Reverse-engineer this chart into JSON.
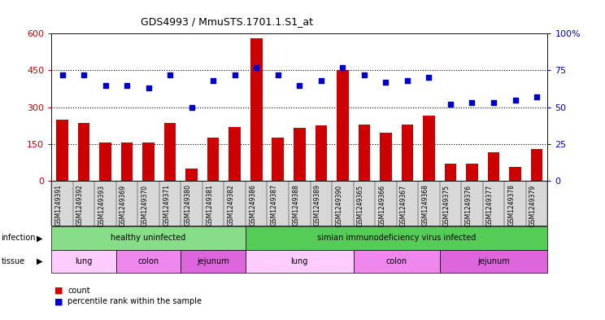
{
  "title": "GDS4993 / MmuSTS.1701.1.S1_at",
  "samples": [
    "GSM1249391",
    "GSM1249392",
    "GSM1249393",
    "GSM1249369",
    "GSM1249370",
    "GSM1249371",
    "GSM1249380",
    "GSM1249381",
    "GSM1249382",
    "GSM1249386",
    "GSM1249387",
    "GSM1249388",
    "GSM1249389",
    "GSM1249390",
    "GSM1249365",
    "GSM1249366",
    "GSM1249367",
    "GSM1249368",
    "GSM1249375",
    "GSM1249376",
    "GSM1249377",
    "GSM1249378",
    "GSM1249379"
  ],
  "counts": [
    250,
    235,
    155,
    155,
    155,
    235,
    50,
    175,
    220,
    580,
    175,
    215,
    225,
    450,
    230,
    195,
    230,
    265,
    70,
    70,
    115,
    55,
    130
  ],
  "percentiles": [
    72,
    72,
    65,
    65,
    63,
    72,
    50,
    68,
    72,
    77,
    72,
    65,
    68,
    77,
    72,
    67,
    68,
    70,
    52,
    53,
    53,
    55,
    57
  ],
  "bar_color": "#cc0000",
  "scatter_color": "#0000cc",
  "infection_groups": [
    {
      "label": "healthy uninfected",
      "start": 0,
      "end": 9,
      "color": "#88dd88"
    },
    {
      "label": "simian immunodeficiency virus infected",
      "start": 9,
      "end": 23,
      "color": "#55cc55"
    }
  ],
  "tissue_groups": [
    {
      "label": "lung",
      "start": 0,
      "end": 3,
      "color": "#ffccff"
    },
    {
      "label": "colon",
      "start": 3,
      "end": 6,
      "color": "#ee88ee"
    },
    {
      "label": "jejunum",
      "start": 6,
      "end": 9,
      "color": "#dd66dd"
    },
    {
      "label": "lung",
      "start": 9,
      "end": 14,
      "color": "#ffccff"
    },
    {
      "label": "colon",
      "start": 14,
      "end": 18,
      "color": "#ee88ee"
    },
    {
      "label": "jejunum",
      "start": 18,
      "end": 23,
      "color": "#dd66dd"
    }
  ],
  "ylim_left": [
    0,
    600
  ],
  "ylim_right": [
    0,
    100
  ],
  "yticks_left": [
    0,
    150,
    300,
    450,
    600
  ],
  "yticks_right": [
    0,
    25,
    50,
    75,
    100
  ],
  "ylabel_left_color": "#cc0000",
  "ylabel_right_color": "#0000cc",
  "grid_lines": [
    150,
    300,
    450
  ],
  "xtick_bg_color": "#d8d8d8",
  "legend_items": [
    {
      "label": "count",
      "color": "#cc0000"
    },
    {
      "label": "percentile rank within the sample",
      "color": "#0000cc"
    }
  ]
}
